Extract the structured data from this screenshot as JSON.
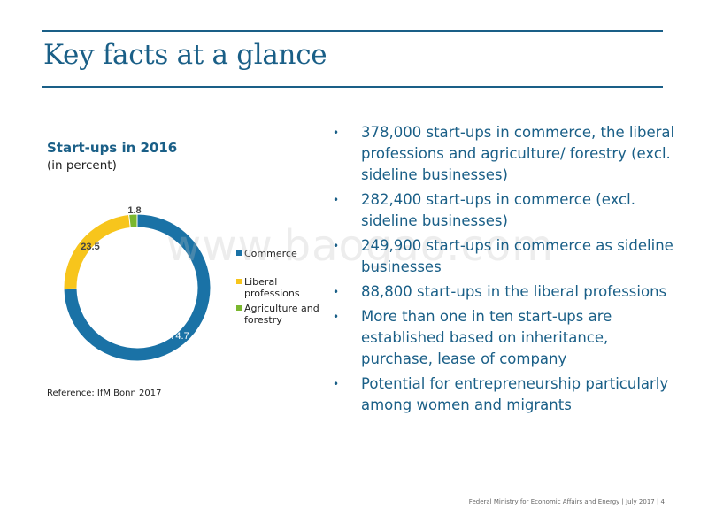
{
  "slide": {
    "title": "Key facts at a glance",
    "footer": "Federal Ministry for Economic Affairs and Energy | July 2017 | 4",
    "watermark": "www.baogao.com"
  },
  "chart_data": {
    "type": "pie",
    "title": "Start-ups in 2016",
    "subtitle": "(in percent)",
    "categories": [
      "Commerce",
      "Liberal professions",
      "Agriculture and forestry"
    ],
    "values": [
      74.7,
      23.5,
      1.8
    ],
    "data_labels": [
      "74.7",
      "23.5",
      "1.8"
    ],
    "colors": [
      "#1a72a6",
      "#f7c51c",
      "#7ab72e"
    ],
    "legend_position": "right",
    "reference": "Reference: IfM Bonn 2017"
  },
  "legend": [
    {
      "label": "Commerce",
      "color": "#1a72a6"
    },
    {
      "label": "Liberal professions",
      "color": "#f7c51c"
    },
    {
      "label": "Agriculture and forestry",
      "color": "#7ab72e"
    }
  ],
  "bullets": [
    "378,000 start-ups in commerce, the liberal professions and agriculture/ forestry (excl. sideline businesses)",
    "282,400 start-ups in commerce (excl. sideline businesses)",
    "249,900 start-ups in commerce as sideline businesses",
    "88,800 start-ups in the liberal professions",
    "More than one in ten start-ups are established based on inheritance, purchase, lease of company",
    "Potential for entrepreneurship particularly among women and migrants"
  ],
  "bullet_symbol": "•"
}
